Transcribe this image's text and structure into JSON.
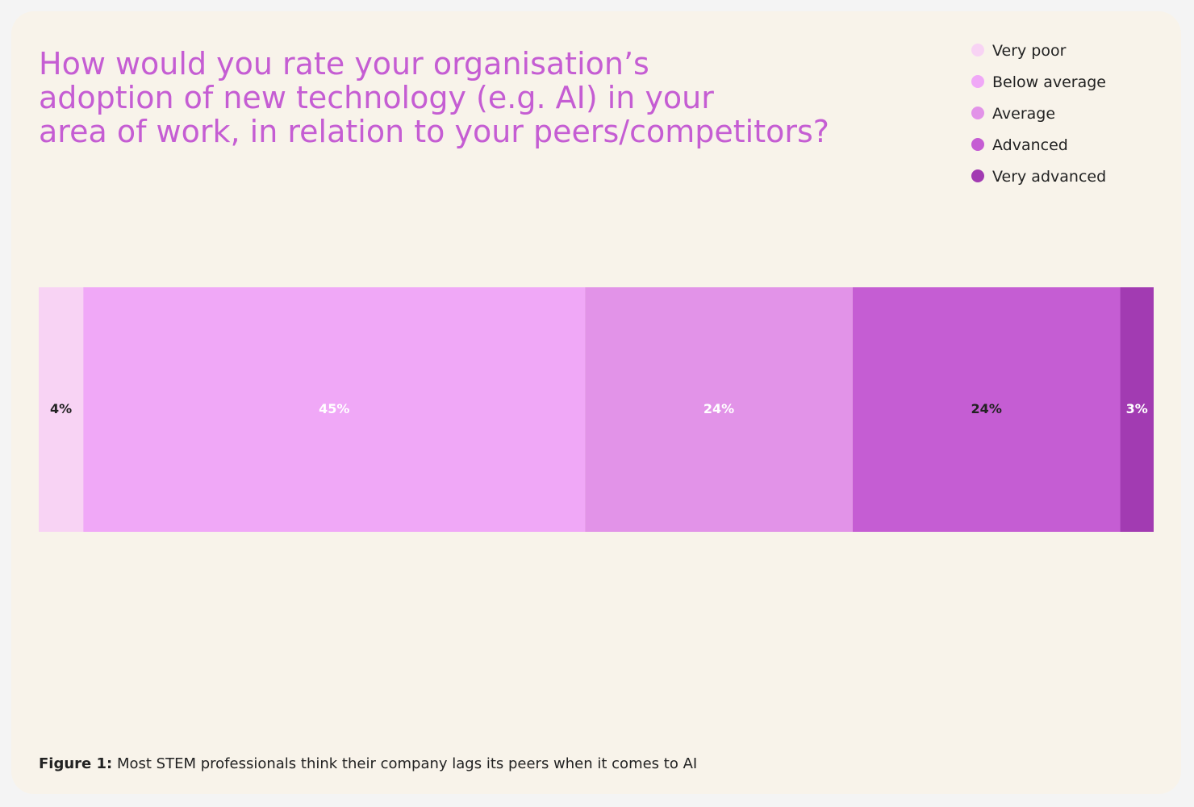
{
  "chart_data": {
    "type": "stacked-bar-100",
    "title": [
      "How would you rate your organisation’s",
      "adoption of new technology (e.g. AI) in your",
      "area of work, in relation to your peers/competitors?"
    ],
    "xlim": [
      0,
      100
    ],
    "series": [
      {
        "name": "Very poor",
        "color": "#f8d3f4",
        "label_color": "#222222",
        "values": [
          4
        ],
        "value_labels": [
          "4%"
        ]
      },
      {
        "name": "Below average",
        "color": "#f0a8f7",
        "label_color": "#ffffff",
        "values": [
          45
        ],
        "value_labels": [
          "45%"
        ]
      },
      {
        "name": "Average",
        "color": "#e293e8",
        "label_color": "#ffffff",
        "values": [
          24
        ],
        "value_labels": [
          "24%"
        ]
      },
      {
        "name": "Advanced",
        "color": "#c55dd3",
        "label_color": "#222222",
        "values": [
          24
        ],
        "value_labels": [
          "24%"
        ]
      },
      {
        "name": "Very advanced",
        "color": "#a23bb2",
        "label_color": "#ffffff",
        "values": [
          3
        ],
        "value_labels": [
          "3%"
        ]
      }
    ],
    "caption": {
      "label": "Figure 1:",
      "text": "Most STEM professionals think their company lags its peers when it comes to AI"
    }
  }
}
